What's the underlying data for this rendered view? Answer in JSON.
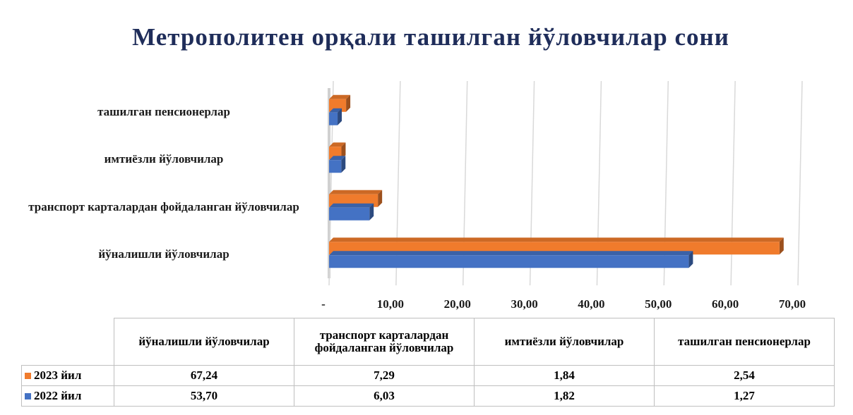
{
  "chart_data": {
    "type": "bar",
    "orientation": "horizontal",
    "title": "Метрополитен орқали ташилган йўловчилар сони",
    "categories": [
      "йўналишли йўловчилар",
      "транспорт карталардан фойдаланган йўловчилар",
      "имтиёзли йўловчилар",
      "ташилган пенсионерлар"
    ],
    "series": [
      {
        "name": "2023 йил",
        "color": "#f07b2c",
        "values": [
          67.24,
          7.29,
          1.84,
          2.54
        ],
        "value_labels": [
          "67,24",
          "7,29",
          "1,84",
          "2,54"
        ]
      },
      {
        "name": "2022 йил",
        "color": "#4472c4",
        "values": [
          53.7,
          6.03,
          1.82,
          1.27
        ],
        "value_labels": [
          "53,70",
          "6,03",
          "1,82",
          "1,27"
        ]
      }
    ],
    "xlim": [
      0,
      70
    ],
    "xticks": [
      {
        "value": 0,
        "label": "-"
      },
      {
        "value": 10,
        "label": "10,00"
      },
      {
        "value": 20,
        "label": "20,00"
      },
      {
        "value": 30,
        "label": "30,00"
      },
      {
        "value": 40,
        "label": "40,00"
      },
      {
        "value": 50,
        "label": "50,00"
      },
      {
        "value": 60,
        "label": "60,00"
      },
      {
        "value": 70,
        "label": "70,00"
      }
    ],
    "grid": true,
    "data_table": true
  }
}
